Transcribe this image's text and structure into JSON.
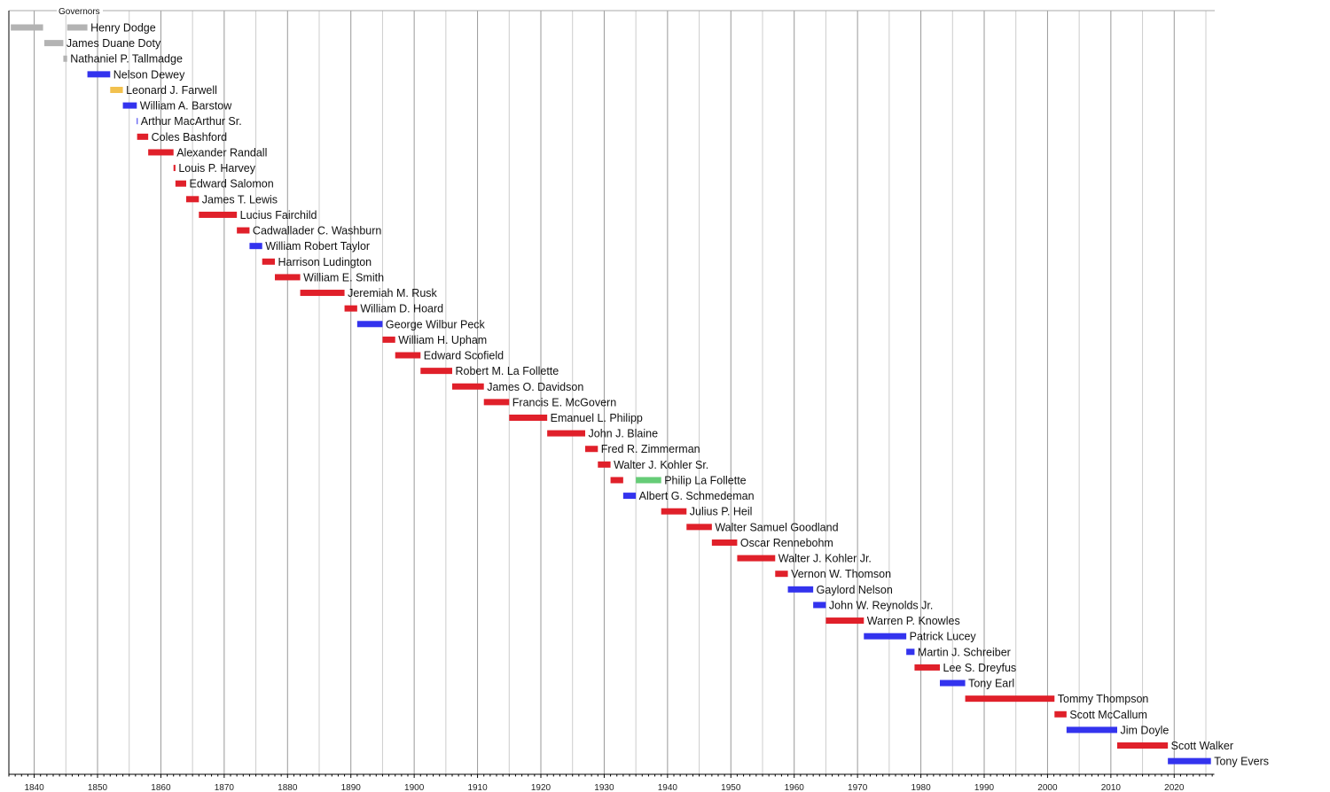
{
  "chart_data": {
    "type": "bar",
    "subtype": "timeline",
    "title": "Governors",
    "xlim": [
      1836,
      2026.4
    ],
    "grid": true,
    "x_ticks": [
      1840,
      1850,
      1860,
      1870,
      1880,
      1890,
      1900,
      1910,
      1920,
      1930,
      1940,
      1950,
      1960,
      1970,
      1980,
      1990,
      2000,
      2010,
      2020
    ],
    "party_colors": {
      "territorial": "#b3b3b3",
      "democratic": "#3333ee",
      "whig": "#f2c14e",
      "republican": "#e0202a",
      "progressive": "#66cc77"
    },
    "governors": [
      {
        "name": "Henry Dodge",
        "terms": [
          {
            "start": 1836.3,
            "end": 1841.4,
            "party": "territorial"
          },
          {
            "start": 1845.2,
            "end": 1848.4,
            "party": "territorial"
          }
        ]
      },
      {
        "name": "James Duane Doty",
        "terms": [
          {
            "start": 1841.6,
            "end": 1844.6,
            "party": "territorial"
          }
        ]
      },
      {
        "name": "Nathaniel P. Tallmadge",
        "terms": [
          {
            "start": 1844.6,
            "end": 1845.2,
            "party": "territorial"
          }
        ]
      },
      {
        "name": "Nelson Dewey",
        "terms": [
          {
            "start": 1848.4,
            "end": 1852,
            "party": "democratic"
          }
        ]
      },
      {
        "name": "Leonard J. Farwell",
        "terms": [
          {
            "start": 1852,
            "end": 1854,
            "party": "whig"
          }
        ]
      },
      {
        "name": "William A. Barstow",
        "terms": [
          {
            "start": 1854,
            "end": 1856.2,
            "party": "democratic"
          }
        ]
      },
      {
        "name": "Arthur MacArthur Sr.",
        "terms": [
          {
            "start": 1856.2,
            "end": 1856.25,
            "party": "democratic"
          }
        ]
      },
      {
        "name": "Coles Bashford",
        "terms": [
          {
            "start": 1856.25,
            "end": 1858,
            "party": "republican"
          }
        ]
      },
      {
        "name": "Alexander Randall",
        "terms": [
          {
            "start": 1858,
            "end": 1862,
            "party": "republican"
          }
        ]
      },
      {
        "name": "Louis P. Harvey",
        "terms": [
          {
            "start": 1862,
            "end": 1862.3,
            "party": "republican"
          }
        ]
      },
      {
        "name": "Edward Salomon",
        "terms": [
          {
            "start": 1862.3,
            "end": 1864,
            "party": "republican"
          }
        ]
      },
      {
        "name": "James T. Lewis",
        "terms": [
          {
            "start": 1864,
            "end": 1866,
            "party": "republican"
          }
        ]
      },
      {
        "name": "Lucius Fairchild",
        "terms": [
          {
            "start": 1866,
            "end": 1872,
            "party": "republican"
          }
        ]
      },
      {
        "name": "Cadwallader C. Washburn",
        "terms": [
          {
            "start": 1872,
            "end": 1874,
            "party": "republican"
          }
        ]
      },
      {
        "name": "William Robert Taylor",
        "terms": [
          {
            "start": 1874,
            "end": 1876,
            "party": "democratic"
          }
        ]
      },
      {
        "name": "Harrison Ludington",
        "terms": [
          {
            "start": 1876,
            "end": 1878,
            "party": "republican"
          }
        ]
      },
      {
        "name": "William E. Smith",
        "terms": [
          {
            "start": 1878,
            "end": 1882,
            "party": "republican"
          }
        ]
      },
      {
        "name": "Jeremiah M. Rusk",
        "terms": [
          {
            "start": 1882,
            "end": 1889,
            "party": "republican"
          }
        ]
      },
      {
        "name": "William D. Hoard",
        "terms": [
          {
            "start": 1889,
            "end": 1891,
            "party": "republican"
          }
        ]
      },
      {
        "name": "George Wilbur Peck",
        "terms": [
          {
            "start": 1891,
            "end": 1895,
            "party": "democratic"
          }
        ]
      },
      {
        "name": "William H. Upham",
        "terms": [
          {
            "start": 1895,
            "end": 1897,
            "party": "republican"
          }
        ]
      },
      {
        "name": "Edward Scofield",
        "terms": [
          {
            "start": 1897,
            "end": 1901,
            "party": "republican"
          }
        ]
      },
      {
        "name": "Robert M. La Follette",
        "terms": [
          {
            "start": 1901,
            "end": 1906,
            "party": "republican"
          }
        ]
      },
      {
        "name": "James O. Davidson",
        "terms": [
          {
            "start": 1906,
            "end": 1911,
            "party": "republican"
          }
        ]
      },
      {
        "name": "Francis E. McGovern",
        "terms": [
          {
            "start": 1911,
            "end": 1915,
            "party": "republican"
          }
        ]
      },
      {
        "name": "Emanuel L. Philipp",
        "terms": [
          {
            "start": 1915,
            "end": 1921,
            "party": "republican"
          }
        ]
      },
      {
        "name": "John J. Blaine",
        "terms": [
          {
            "start": 1921,
            "end": 1927,
            "party": "republican"
          }
        ]
      },
      {
        "name": "Fred R. Zimmerman",
        "terms": [
          {
            "start": 1927,
            "end": 1929,
            "party": "republican"
          }
        ]
      },
      {
        "name": "Walter J. Kohler Sr.",
        "terms": [
          {
            "start": 1929,
            "end": 1931,
            "party": "republican"
          }
        ]
      },
      {
        "name": "Philip La Follette",
        "terms": [
          {
            "start": 1931,
            "end": 1933,
            "party": "republican"
          },
          {
            "start": 1935,
            "end": 1939,
            "party": "progressive"
          }
        ]
      },
      {
        "name": "Albert G. Schmedeman",
        "terms": [
          {
            "start": 1933,
            "end": 1935,
            "party": "democratic"
          }
        ]
      },
      {
        "name": "Julius P. Heil",
        "terms": [
          {
            "start": 1939,
            "end": 1943,
            "party": "republican"
          }
        ]
      },
      {
        "name": "Walter Samuel Goodland",
        "terms": [
          {
            "start": 1943,
            "end": 1947,
            "party": "republican"
          }
        ]
      },
      {
        "name": "Oscar Rennebohm",
        "terms": [
          {
            "start": 1947,
            "end": 1951,
            "party": "republican"
          }
        ]
      },
      {
        "name": "Walter J. Kohler Jr.",
        "terms": [
          {
            "start": 1951,
            "end": 1957,
            "party": "republican"
          }
        ]
      },
      {
        "name": "Vernon W. Thomson",
        "terms": [
          {
            "start": 1957,
            "end": 1959,
            "party": "republican"
          }
        ]
      },
      {
        "name": "Gaylord Nelson",
        "terms": [
          {
            "start": 1959,
            "end": 1963,
            "party": "democratic"
          }
        ]
      },
      {
        "name": "John W. Reynolds Jr.",
        "terms": [
          {
            "start": 1963,
            "end": 1965,
            "party": "democratic"
          }
        ]
      },
      {
        "name": "Warren P. Knowles",
        "terms": [
          {
            "start": 1965,
            "end": 1971,
            "party": "republican"
          }
        ]
      },
      {
        "name": "Patrick Lucey",
        "terms": [
          {
            "start": 1971,
            "end": 1977.7,
            "party": "democratic"
          }
        ]
      },
      {
        "name": "Martin J. Schreiber",
        "terms": [
          {
            "start": 1977.7,
            "end": 1979,
            "party": "democratic"
          }
        ]
      },
      {
        "name": "Lee S. Dreyfus",
        "terms": [
          {
            "start": 1979,
            "end": 1983,
            "party": "republican"
          }
        ]
      },
      {
        "name": "Tony Earl",
        "terms": [
          {
            "start": 1983,
            "end": 1987,
            "party": "democratic"
          }
        ]
      },
      {
        "name": "Tommy Thompson",
        "terms": [
          {
            "start": 1987,
            "end": 2001.1,
            "party": "republican"
          }
        ]
      },
      {
        "name": "Scott McCallum",
        "terms": [
          {
            "start": 2001.1,
            "end": 2003,
            "party": "republican"
          }
        ]
      },
      {
        "name": "Jim Doyle",
        "terms": [
          {
            "start": 2003,
            "end": 2011,
            "party": "democratic"
          }
        ]
      },
      {
        "name": "Scott Walker",
        "terms": [
          {
            "start": 2011,
            "end": 2019,
            "party": "republican"
          }
        ]
      },
      {
        "name": "Tony Evers",
        "terms": [
          {
            "start": 2019,
            "end": 2025.8,
            "party": "democratic"
          }
        ]
      }
    ]
  }
}
